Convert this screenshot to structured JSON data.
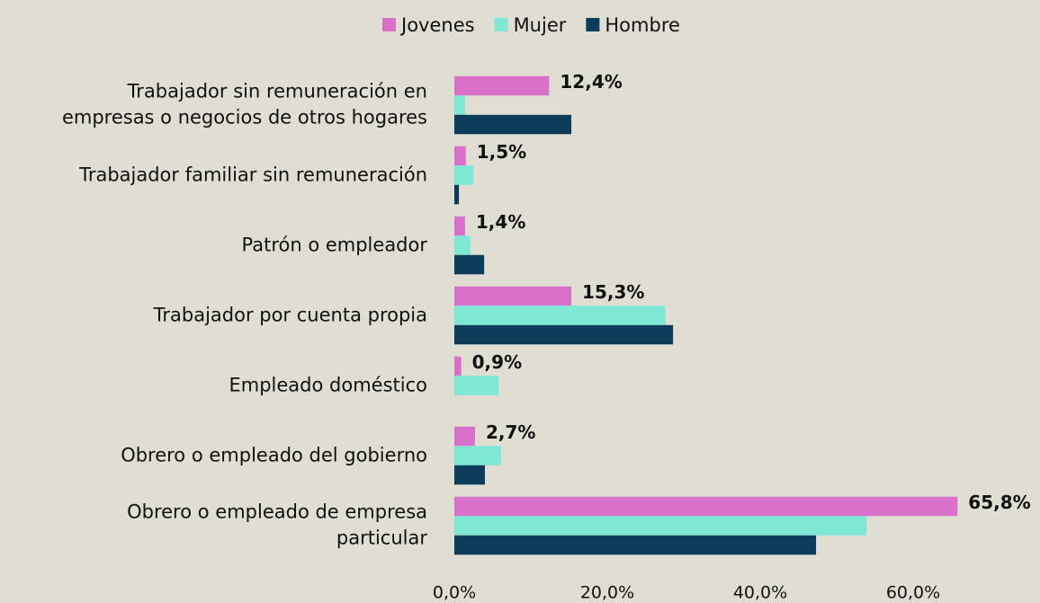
{
  "chart_data": {
    "type": "barh",
    "categories": [
      "Trabajador sin remuneración en\nempresas o negocios de otros hogares",
      "Trabajador familiar sin remuneración",
      "Patrón o empleador",
      "Trabajador por cuenta propia",
      "Empleado doméstico",
      "Obrero o empleado del gobierno",
      "Obrero o empleado de empresa\nparticular"
    ],
    "series": [
      {
        "name": "Jovenes",
        "color": "#d970c9",
        "values": [
          12.4,
          1.5,
          1.4,
          15.3,
          0.9,
          2.7,
          65.8
        ],
        "value_labels": [
          "12,4%",
          "1,5%",
          "1,4%",
          "15,3%",
          "0,9%",
          "2,7%",
          "65,8%"
        ]
      },
      {
        "name": "Mujer",
        "color": "#7ee8d4",
        "values": [
          1.4,
          2.5,
          2.1,
          27.6,
          5.8,
          6.1,
          53.9
        ]
      },
      {
        "name": "Hombre",
        "color": "#0b3d5a",
        "values": [
          15.3,
          0.6,
          3.9,
          28.6,
          0,
          4.0,
          47.3
        ]
      }
    ],
    "xlim": [
      0,
      70
    ],
    "xticks": [
      {
        "value": 0,
        "label": "0,0%"
      },
      {
        "value": 20,
        "label": "20,0%"
      },
      {
        "value": 40,
        "label": "40,0%"
      },
      {
        "value": 60,
        "label": "60,0%"
      }
    ],
    "legend": "top"
  }
}
